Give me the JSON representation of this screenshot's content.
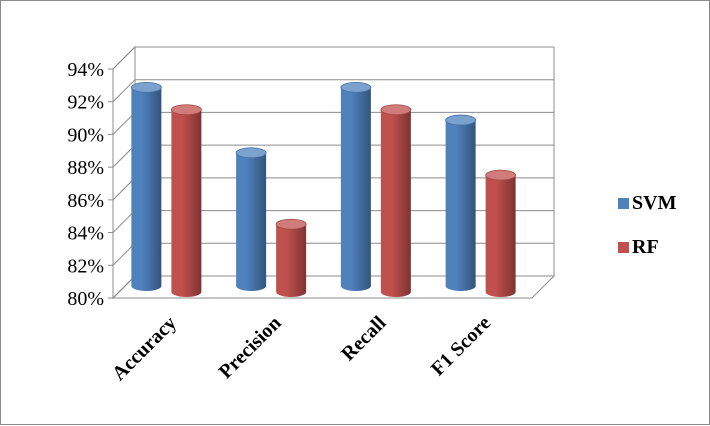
{
  "chart_data": {
    "type": "bar",
    "categories": [
      "Accuracy",
      "Precision",
      "Recall",
      "F1 Score"
    ],
    "series": [
      {
        "name": "SVM",
        "values": [
          93,
          89,
          93,
          91
        ],
        "color": "#4F81BD"
      },
      {
        "name": "RF",
        "values": [
          92,
          85,
          92,
          88
        ],
        "color": "#C0504D"
      }
    ],
    "ylim": [
      80,
      94
    ],
    "yticks": [
      "80%",
      "82%",
      "84%",
      "86%",
      "88%",
      "90%",
      "92%",
      "94%"
    ],
    "title": "",
    "xlabel": "",
    "ylabel": "",
    "grid": true,
    "legend_position": "right",
    "style": "3d-cylinder"
  }
}
